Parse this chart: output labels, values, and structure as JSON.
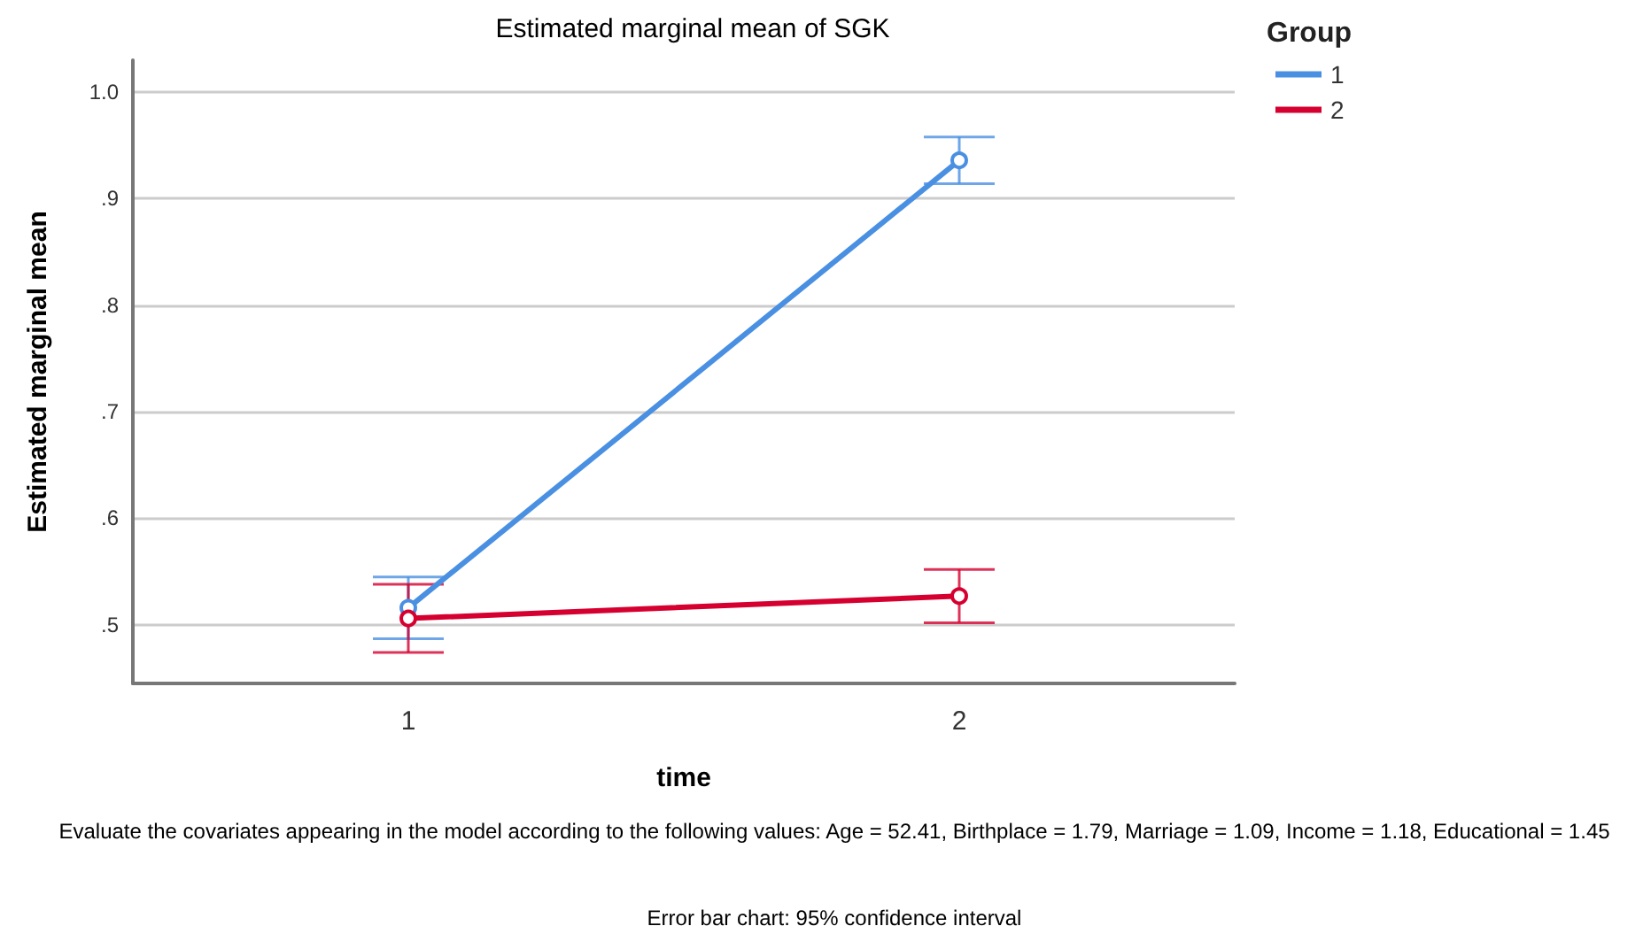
{
  "chart_data": {
    "type": "line",
    "title": "Estimated marginal mean of SGK",
    "xlabel": "time",
    "ylabel": "Estimated marginal mean",
    "legend_title": "Group",
    "categories": [
      "1",
      "2"
    ],
    "series": [
      {
        "name": "1",
        "color": "#4a90e2",
        "values": [
          0.516,
          0.936
        ],
        "errors": [
          [
            0.487,
            0.545
          ],
          [
            0.914,
            0.958
          ]
        ]
      },
      {
        "name": "2",
        "color": "#d5002f",
        "values": [
          0.506,
          0.527
        ],
        "errors": [
          [
            0.474,
            0.538
          ],
          [
            0.502,
            0.552
          ]
        ]
      }
    ],
    "ylim": [
      0.445,
      1.03
    ],
    "yticks": [
      {
        "value": 0.5,
        "label": ".5"
      },
      {
        "value": 0.6,
        "label": ".6"
      },
      {
        "value": 0.7,
        "label": ".7"
      },
      {
        "value": 0.8,
        "label": ".8"
      },
      {
        "value": 0.9,
        "label": ".9"
      },
      {
        "value": 1.0,
        "label": "1.0"
      }
    ],
    "grid": "y",
    "legend": "top right",
    "marker": "circle",
    "line_style": "solid",
    "annotations": [
      "Evaluate the covariates appearing in the model according to the following values: Age = 52.41, Birthplace = 1.79, Marriage = 1.09, Income = 1.18, Educational = 1.45",
      "Error bar chart: 95% confidence interval"
    ]
  }
}
